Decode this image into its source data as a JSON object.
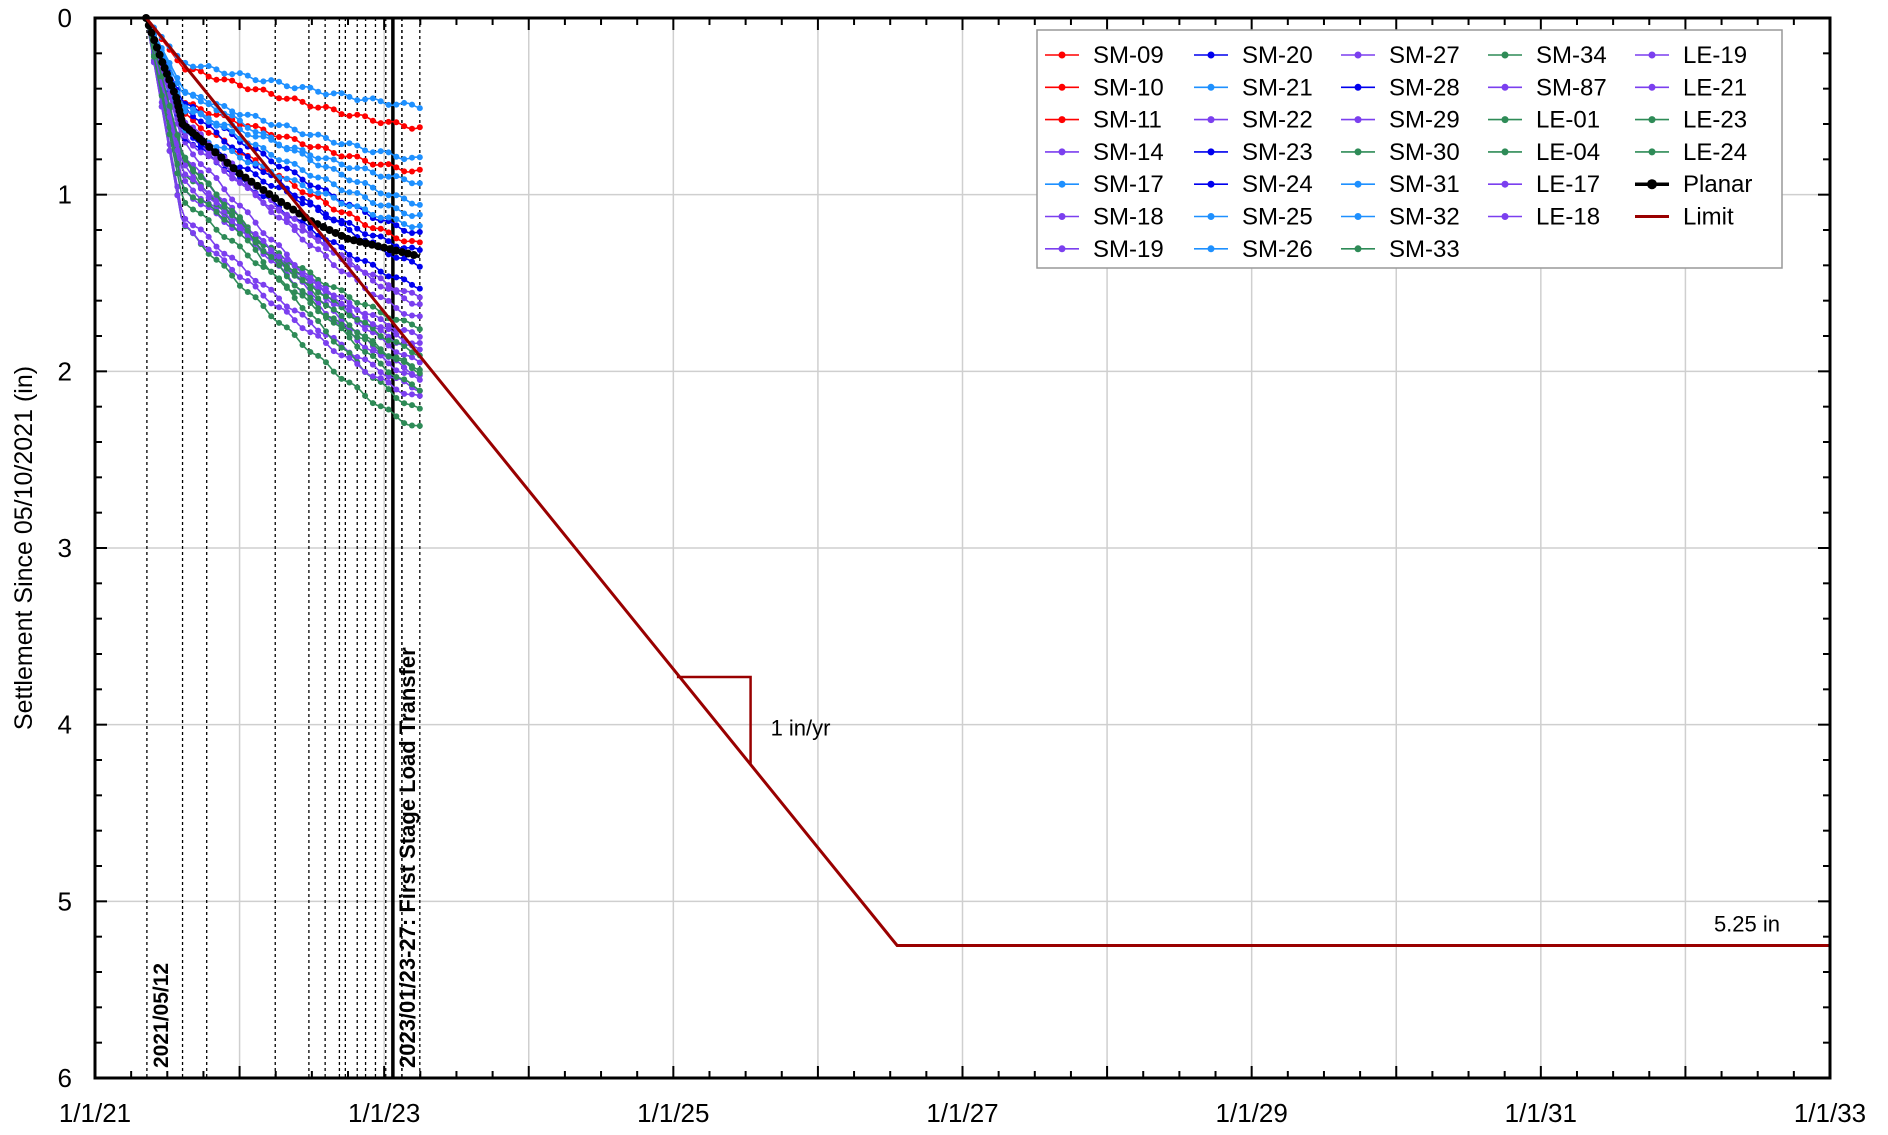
{
  "chart_data": {
    "type": "line",
    "title": "",
    "ylabel": "Settlement Since 05/10/2021 (in)",
    "xlabel": "",
    "y_inverted": true,
    "ylim": [
      0,
      6
    ],
    "xlim": [
      "2021-01-01",
      "2033-01-01"
    ],
    "grid": true,
    "legend_placement": "top-right",
    "x_tick_labels": [
      "1/1/21",
      "1/1/23",
      "1/1/25",
      "1/1/27",
      "1/1/29",
      "1/1/31",
      "1/1/33"
    ],
    "x_ticks": [
      "2021-01-01",
      "2023-01-01",
      "2025-01-01",
      "2027-01-01",
      "2029-01-01",
      "2031-01-01",
      "2033-01-01"
    ],
    "y_tick_labels": [
      "0",
      "1",
      "2",
      "3",
      "4",
      "5",
      "6"
    ],
    "y_ticks": [
      0,
      1,
      2,
      3,
      4,
      5,
      6
    ],
    "event_lines": [
      {
        "date": "2021-05-12",
        "label": "2021/05/12",
        "style": "dotted"
      },
      {
        "date": "2021-08-10",
        "label": "",
        "style": "dotted"
      },
      {
        "date": "2021-10-10",
        "label": "",
        "style": "dotted"
      },
      {
        "date": "2022-04-01",
        "label": "",
        "style": "dotted"
      },
      {
        "date": "2022-06-25",
        "label": "",
        "style": "dotted"
      },
      {
        "date": "2022-08-05",
        "label": "",
        "style": "dotted"
      },
      {
        "date": "2022-09-10",
        "label": "",
        "style": "dotted"
      },
      {
        "date": "2022-09-25",
        "label": "",
        "style": "dotted"
      },
      {
        "date": "2022-10-25",
        "label": "",
        "style": "dotted"
      },
      {
        "date": "2022-11-15",
        "label": "",
        "style": "dotted"
      },
      {
        "date": "2022-12-10",
        "label": "",
        "style": "dotted"
      },
      {
        "date": "2023-01-05",
        "label": "",
        "style": "dotted"
      },
      {
        "date": "2023-01-23",
        "label": "2023/01/23-27: First Stage Load Transfer",
        "style": "solid"
      },
      {
        "date": "2023-02-15",
        "label": "",
        "style": "dotted"
      },
      {
        "date": "2023-04-01",
        "label": "",
        "style": "dotted"
      }
    ],
    "series": [
      {
        "name": "SM-09",
        "color": "#ff0000",
        "final": 0.62
      },
      {
        "name": "SM-10",
        "color": "#ff0000",
        "final": 0.87
      },
      {
        "name": "SM-11",
        "color": "#ff0000",
        "final": 1.28
      },
      {
        "name": "SM-14",
        "color": "#7b3fef",
        "final": 1.95
      },
      {
        "name": "SM-17",
        "color": "#1e90ff",
        "final": 0.5
      },
      {
        "name": "SM-18",
        "color": "#7b3fef",
        "final": 2.1
      },
      {
        "name": "SM-19",
        "color": "#7b3fef",
        "final": 2.02
      },
      {
        "name": "SM-20",
        "color": "#0000ee",
        "final": 1.22
      },
      {
        "name": "SM-21",
        "color": "#1e90ff",
        "final": 0.8
      },
      {
        "name": "SM-22",
        "color": "#7b3fef",
        "final": 1.88
      },
      {
        "name": "SM-23",
        "color": "#0000ee",
        "final": 1.4
      },
      {
        "name": "SM-24",
        "color": "#0000ee",
        "final": 1.52
      },
      {
        "name": "SM-25",
        "color": "#1e90ff",
        "final": 0.93
      },
      {
        "name": "SM-26",
        "color": "#1e90ff",
        "final": 1.12
      },
      {
        "name": "SM-27",
        "color": "#7b3fef",
        "final": 1.7
      },
      {
        "name": "SM-28",
        "color": "#0000ee",
        "final": 1.32
      },
      {
        "name": "SM-29",
        "color": "#7b3fef",
        "final": 1.8
      },
      {
        "name": "SM-30",
        "color": "#2e8b57",
        "final": 2.0
      },
      {
        "name": "SM-31",
        "color": "#1e90ff",
        "final": 1.05
      },
      {
        "name": "SM-32",
        "color": "#1e90ff",
        "final": 1.18
      },
      {
        "name": "SM-33",
        "color": "#2e8b57",
        "final": 2.32
      },
      {
        "name": "SM-34",
        "color": "#2e8b57",
        "final": 2.22
      },
      {
        "name": "SM-87",
        "color": "#7b3fef",
        "final": 1.58
      },
      {
        "name": "LE-01",
        "color": "#2e8b57",
        "final": 1.75
      },
      {
        "name": "LE-04",
        "color": "#2e8b57",
        "final": 1.9
      },
      {
        "name": "LE-17",
        "color": "#7b3fef",
        "final": 1.62
      },
      {
        "name": "LE-18",
        "color": "#7b3fef",
        "final": 1.85
      },
      {
        "name": "LE-19",
        "color": "#7b3fef",
        "final": 2.15
      },
      {
        "name": "LE-21",
        "color": "#7b3fef",
        "final": 2.05
      },
      {
        "name": "LE-23",
        "color": "#2e8b57",
        "final": 2.1
      },
      {
        "name": "LE-24",
        "color": "#2e8b57",
        "final": 1.98
      },
      {
        "name": "Planar",
        "color": "#000000",
        "final": 1.35
      }
    ],
    "planar_points": [
      {
        "x": "2021-05-10",
        "y": 0.0
      },
      {
        "x": "2021-06-20",
        "y": 0.25
      },
      {
        "x": "2021-07-25",
        "y": 0.45
      },
      {
        "x": "2021-08-10",
        "y": 0.6
      },
      {
        "x": "2021-10-01",
        "y": 0.7
      },
      {
        "x": "2022-01-01",
        "y": 0.88
      },
      {
        "x": "2022-04-01",
        "y": 1.02
      },
      {
        "x": "2022-07-01",
        "y": 1.15
      },
      {
        "x": "2022-10-01",
        "y": 1.25
      },
      {
        "x": "2023-01-01",
        "y": 1.3
      },
      {
        "x": "2023-04-01",
        "y": 1.35
      }
    ],
    "limit_line": {
      "name": "Limit",
      "color": "#990000",
      "points": [
        {
          "x": "2021-05-10",
          "y": 0
        },
        {
          "x": "2026-07-20",
          "y": 5.25
        },
        {
          "x": "2033-01-01",
          "y": 5.25
        }
      ],
      "label": "5.25 in",
      "slope_label": "1 in/yr",
      "slope_triangle": [
        {
          "x": "2025-01-10",
          "y": 3.73
        },
        {
          "x": "2025-07-15",
          "y": 3.73
        },
        {
          "x": "2025-07-15",
          "y": 4.22
        }
      ]
    }
  }
}
